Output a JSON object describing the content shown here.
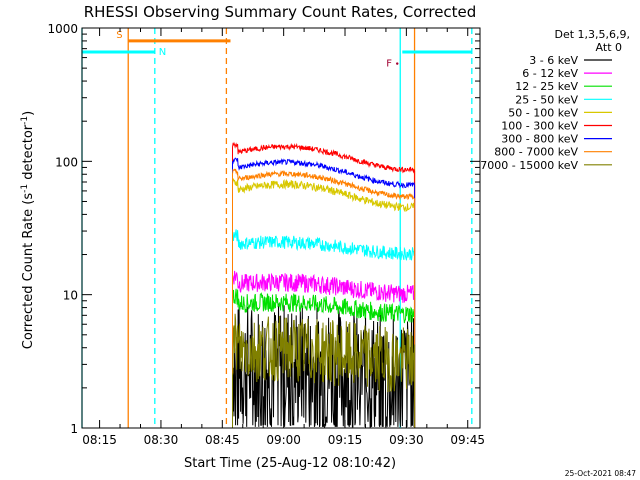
{
  "chart_data": {
    "type": "line",
    "title": "RHESSI Observing Summary Count Rates, Corrected",
    "xlabel": "Start Time (25-Aug-12 08:10:42)",
    "ylabel_main": "Corrected Count Rate (s",
    "ylabel_sup1": "-1",
    "ylabel_mid": " detector",
    "ylabel_sup2": "-1",
    "ylabel_end": ")",
    "y_scale": "log",
    "ylim": [
      1,
      1000
    ],
    "xlim": [
      "08:10:42",
      "09:48:00"
    ],
    "x_ticks": [
      "08:15",
      "08:30",
      "08:45",
      "09:00",
      "09:15",
      "09:30",
      "09:45"
    ],
    "y_ticks": [
      "1",
      "10",
      "100",
      "1000"
    ],
    "legend_header": [
      "Det 1,3,5,6,9,",
      "Att 0"
    ],
    "legend_position": "top-right outside plot",
    "series": [
      {
        "name": "3 - 6 keV",
        "color": "#000000",
        "level": 2.8,
        "noise": 0.5,
        "dropouts": true
      },
      {
        "name": "6 - 12 keV",
        "color": "#ff00ff",
        "level": 12,
        "noise": 0.07
      },
      {
        "name": "12 - 25 keV",
        "color": "#00e000",
        "level": 8.5,
        "noise": 0.07
      },
      {
        "name": "25 - 50 keV",
        "color": "#00ffff",
        "level": 24,
        "noise": 0.05
      },
      {
        "name": "50 - 100 keV",
        "color": "#d8c800",
        "level": 60,
        "noise": 0.03
      },
      {
        "name": "100 - 300 keV",
        "color": "#ff0000",
        "level": 115,
        "noise": 0.02
      },
      {
        "name": "300 - 800 keV",
        "color": "#0000ff",
        "level": 88,
        "noise": 0.02
      },
      {
        "name": "800 - 7000 keV",
        "color": "#ff8000",
        "level": 72,
        "noise": 0.02
      },
      {
        "name": "7000 - 15000 keV",
        "color": "#808000",
        "level": 3.8,
        "noise": 0.25
      }
    ],
    "data_interval": [
      "08:47:30",
      "09:32:00"
    ],
    "annotations": [
      {
        "label": "S",
        "color": "#ff8000",
        "time": "08:22:00",
        "bar_end": "08:47:00",
        "y": 800
      },
      {
        "label": "N",
        "color": "#00ffff",
        "time": "08:28:30",
        "y": 660
      },
      {
        "label": "F",
        "color": "#a00030",
        "time": "09:28:30",
        "y": 550
      }
    ],
    "vlines": [
      {
        "time": "08:10:42",
        "color": "#00ffff",
        "style": "solid"
      },
      {
        "time": "08:22:00",
        "color": "#ff8000",
        "style": "solid"
      },
      {
        "time": "08:28:30",
        "color": "#00ffff",
        "style": "dashed"
      },
      {
        "time": "08:46:00",
        "color": "#ff8000",
        "style": "dashed"
      },
      {
        "time": "09:28:30",
        "color": "#00ffff",
        "style": "solid"
      },
      {
        "time": "09:32:00",
        "color": "#ff8000",
        "style": "solid"
      },
      {
        "time": "09:46:00",
        "color": "#00ffff",
        "style": "dashed"
      }
    ],
    "hbars": [
      {
        "from": "08:10:42",
        "to": "08:28:30",
        "y": 660,
        "color": "#00ffff"
      },
      {
        "from": "08:22:00",
        "to": "08:47:00",
        "y": 800,
        "color": "#ff8000"
      },
      {
        "from": "09:29:00",
        "to": "09:46:00",
        "y": 660,
        "color": "#00ffff"
      }
    ]
  },
  "footer_timestamp": "25-Oct-2021 08:47"
}
